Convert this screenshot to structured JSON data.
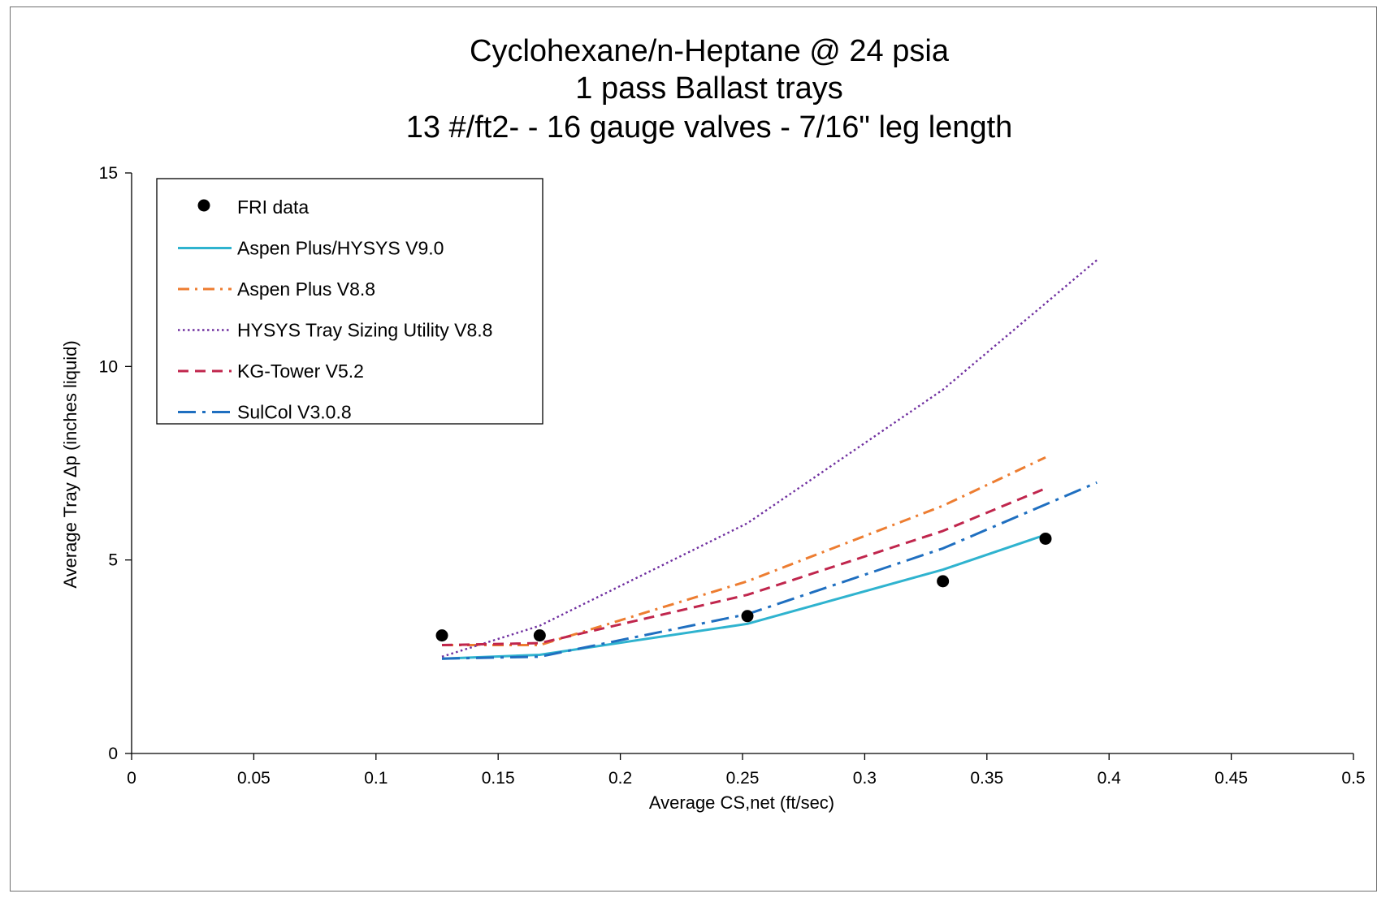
{
  "chart_data": {
    "type": "line",
    "title_lines": [
      "Cyclohexane/n-Heptane @ 24 psia",
      "1 pass Ballast trays",
      "13 #/ft2- -  16 gauge valves - 7/16\" leg length"
    ],
    "xlabel": "Average CS,net (ft/sec)",
    "ylabel": "Average Tray Δp (inches liquid)",
    "xlim": [
      0,
      0.5
    ],
    "ylim": [
      0,
      15
    ],
    "x_ticks": [
      "0",
      "0.05",
      "0.1",
      "0.15",
      "0.2",
      "0.25",
      "0.3",
      "0.35",
      "0.4",
      "0.45",
      "0.5"
    ],
    "y_ticks": [
      "0",
      "5",
      "10",
      "15"
    ],
    "grid": false,
    "legend_position": "top-left",
    "series": [
      {
        "name": "FRI data",
        "kind": "scatter",
        "color": "#000000",
        "x": [
          0.127,
          0.167,
          0.252,
          0.332,
          0.374
        ],
        "y": [
          3.05,
          3.05,
          3.55,
          4.45,
          5.55
        ]
      },
      {
        "name": "Aspen Plus/HYSYS V9.0",
        "kind": "line",
        "style": "solid",
        "color": "#2fb3cf",
        "x": [
          0.127,
          0.167,
          0.252,
          0.332,
          0.374
        ],
        "y": [
          2.45,
          2.55,
          3.35,
          4.75,
          5.65
        ]
      },
      {
        "name": "Aspen Plus V8.8",
        "kind": "line",
        "style": "dashdot",
        "color": "#ed7d31",
        "x": [
          0.127,
          0.167,
          0.252,
          0.332,
          0.374
        ],
        "y": [
          2.8,
          2.8,
          4.45,
          6.4,
          7.65
        ]
      },
      {
        "name": "HYSYS Tray Sizing Utility V8.8",
        "kind": "line",
        "style": "dotted",
        "color": "#7030a0",
        "x": [
          0.127,
          0.167,
          0.252,
          0.332,
          0.395
        ],
        "y": [
          2.5,
          3.3,
          5.95,
          9.4,
          12.75
        ]
      },
      {
        "name": "KG-Tower V5.2",
        "kind": "line",
        "style": "dashed",
        "color": "#c0264d",
        "x": [
          0.127,
          0.167,
          0.252,
          0.332,
          0.374
        ],
        "y": [
          2.8,
          2.85,
          4.1,
          5.75,
          6.85
        ]
      },
      {
        "name": "SulCol V3.0.8",
        "kind": "line",
        "style": "longdashdot",
        "color": "#1f6fc0",
        "x": [
          0.127,
          0.167,
          0.252,
          0.332,
          0.395
        ],
        "y": [
          2.45,
          2.5,
          3.6,
          5.3,
          7.0
        ]
      }
    ]
  }
}
